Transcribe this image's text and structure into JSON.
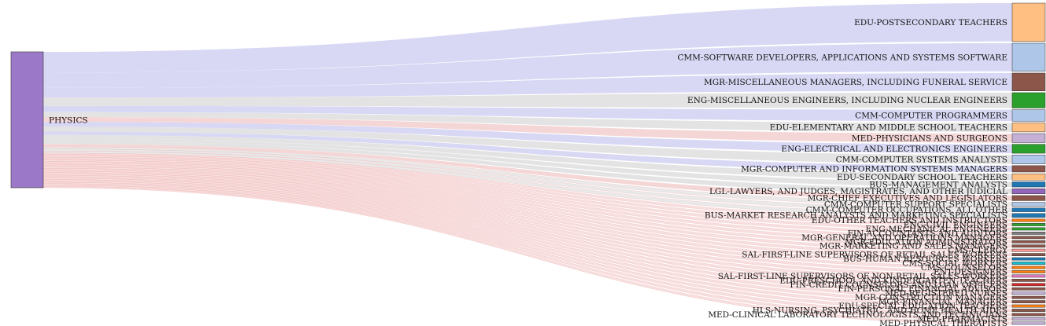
{
  "chart_data": {
    "type": "sankey",
    "source": {
      "label": "PHYSICS",
      "color": "#9c78c8"
    },
    "targets": [
      {
        "label": "EDU-POSTSECONDARY TEACHERS",
        "value": 30,
        "color": "#ffbe82",
        "link": "#d6d6f4"
      },
      {
        "label": "CMM-SOFTWARE DEVELOPERS, APPLICATIONS AND SYSTEMS SOFTWARE",
        "value": 22,
        "color": "#aec7e8",
        "link": "#d6d6f4"
      },
      {
        "label": "MGR-MISCELLANEOUS MANAGERS, INCLUDING FUNERAL SERVICE",
        "value": 14,
        "color": "#8c564b",
        "link": "#d6d6f4"
      },
      {
        "label": "ENG-MISCELLANEOUS ENGINEERS, INCLUDING NUCLEAR ENGINEERS",
        "value": 12,
        "color": "#2ca02c",
        "link": "#e2e2e2"
      },
      {
        "label": "CMM-COMPUTER PROGRAMMERS",
        "value": 9,
        "color": "#aec7e8",
        "link": "#d6d6f4"
      },
      {
        "label": "EDU-ELEMENTARY AND MIDDLE SCHOOL TEACHERS",
        "value": 7,
        "color": "#ffbe82",
        "link": "#e2e2e2"
      },
      {
        "label": "MED-PHYSICIANS AND SURGEONS",
        "value": 7,
        "color": "#c5b0d5",
        "link": "#f4d4d4"
      },
      {
        "label": "ENG-ELECTRICAL AND ELECTRONICS ENGINEERS",
        "value": 7,
        "color": "#2ca02c",
        "link": "#d6d6f4"
      },
      {
        "label": "CMM-COMPUTER SYSTEMS ANALYSTS",
        "value": 7,
        "color": "#aec7e8",
        "link": "#e2e2e2"
      },
      {
        "label": "MGR-COMPUTER AND INFORMATION SYSTEMS MANAGERS",
        "value": 5,
        "color": "#8c564b",
        "link": "#d6d6f4"
      },
      {
        "label": "EDU-SECONDARY SCHOOL TEACHERS",
        "value": 5,
        "color": "#ffbe82",
        "link": "#e2e2e2"
      },
      {
        "label": "BUS-MANAGEMENT ANALYSTS",
        "value": 4,
        "color": "#1f77b4",
        "link": "#e2e2e2"
      },
      {
        "label": "LGL-LAWYERS, AND JUDGES, MAGISTRATES, AND OTHER JUDICIAL",
        "value": 4,
        "color": "#9467bd",
        "link": "#e2e2e2"
      },
      {
        "label": "MGR-CHIEF EXECUTIVES AND LEGISLATORS",
        "value": 4,
        "color": "#8c564b",
        "link": "#f4d4d4"
      },
      {
        "label": "CMM-COMPUTER SUPPORT SPECIALISTS",
        "value": 3,
        "color": "#aec7e8",
        "link": "#e2e2e2"
      },
      {
        "label": "CMM-COMPUTER OCCUPATIONS, ALL OTHER",
        "value": 3,
        "color": "#1f77b4",
        "link": "#e2e2e2"
      },
      {
        "label": "BUS-MARKET RESEARCH ANALYSTS AND MARKETING SPECIALISTS",
        "value": 3,
        "color": "#1f77b4",
        "link": "#e2e2e2"
      },
      {
        "label": "EDU-OTHER TEACHERS AND INSTRUCTORS",
        "value": 2,
        "color": "#ff7f0e",
        "link": "#f4d4d4"
      },
      {
        "label": "ENG-CIVIL ENGINEERS",
        "value": 2,
        "color": "#2ca02c",
        "link": "#f4d4d4"
      },
      {
        "label": "ENG-MECHANICAL ENGINEERS",
        "value": 2,
        "color": "#2ca02c",
        "link": "#f4d4d4"
      },
      {
        "label": "FIN-ACCOUNTANTS AND AUDITORS",
        "value": 2,
        "color": "#7f7f7f",
        "link": "#f4d4d4"
      },
      {
        "label": "MGR-GENERAL AND OPERATIONS MANAGERS",
        "value": 2,
        "color": "#8c564b",
        "link": "#f4d4d4"
      },
      {
        "label": "MGR-EDUCATION ADMINISTRATORS",
        "value": 2,
        "color": "#8c564b",
        "link": "#f4d4d4"
      },
      {
        "label": "MGR-MARKETING AND SALES MANAGERS",
        "value": 2,
        "color": "#8c564b",
        "link": "#f4d4d4"
      },
      {
        "label": "CMS-CLERGY",
        "value": 2,
        "color": "#ff9896",
        "link": "#f4d4d4"
      },
      {
        "label": "SAL-FIRST-LINE SUPERVISORS OF RETAIL SALES WORKERS",
        "value": 2,
        "color": "#8c564b",
        "link": "#f4d4d4"
      },
      {
        "label": "BUS-HUMAN RESOURCES WORKERS",
        "value": 2,
        "color": "#1f77b4",
        "link": "#f4d4d4"
      },
      {
        "label": "CMS-SOCIAL WORKERS",
        "value": 2,
        "color": "#17becf",
        "link": "#f4d4d4"
      },
      {
        "label": "CMS-COUNSELORS",
        "value": 2,
        "color": "#ff7f0e",
        "link": "#f4d4d4"
      },
      {
        "label": "ENT-DESIGNERS",
        "value": 2,
        "color": "#ff7f0e",
        "link": "#f4d4d4"
      },
      {
        "label": "SAL-FIRST-LINE SUPERVISORS OF NON-RETAIL SALES WORKERS",
        "value": 2,
        "color": "#e377c2",
        "link": "#f4d4d4"
      },
      {
        "label": "EDU-PRESCHOOL AND KINDERGARTEN TEACHERS",
        "value": 2,
        "color": "#8c564b",
        "link": "#f4d4d4"
      },
      {
        "label": "FIN-CREDIT COUNSELORS AND LOAN OFFICERS",
        "value": 2,
        "color": "#d62728",
        "link": "#f4d4d4"
      },
      {
        "label": "FIN-PERSONAL FINANCIAL ADVISORS",
        "value": 2,
        "color": "#8c564b",
        "link": "#f4d4d4"
      },
      {
        "label": "MED-REGISTERED NURSES",
        "value": 2,
        "color": "#c5b0d5",
        "link": "#f4d4d4"
      },
      {
        "label": "MGR-CONSTRUCTION MANAGERS",
        "value": 2,
        "color": "#8c564b",
        "link": "#f4d4d4"
      },
      {
        "label": "MGR-FINANCIAL MANAGERS",
        "value": 2,
        "color": "#8c564b",
        "link": "#f4d4d4"
      },
      {
        "label": "EDU-SPECIAL EDUCATION TEACHERS",
        "value": 2,
        "color": "#ff7f0e",
        "link": "#f4d4d4"
      },
      {
        "label": "HLS-NURSING, PSYCHIATRIC, AND HOME HEALTH AIDES",
        "value": 2,
        "color": "#8c564b",
        "link": "#f4d4d4"
      },
      {
        "label": "MED-CLINICAL LABORATORY TECHNOLOGISTS AND TECHNICIANS",
        "value": 2,
        "color": "#8c564b",
        "link": "#f4d4d4"
      },
      {
        "label": "MED-PHARMACISTS",
        "value": 2,
        "color": "#c5b0d5",
        "link": "#f4d4d4"
      },
      {
        "label": "MED-PHYSICAL THERAPISTS",
        "value": 2,
        "color": "#c5b0d5",
        "link": "#f4d4d4"
      }
    ]
  }
}
